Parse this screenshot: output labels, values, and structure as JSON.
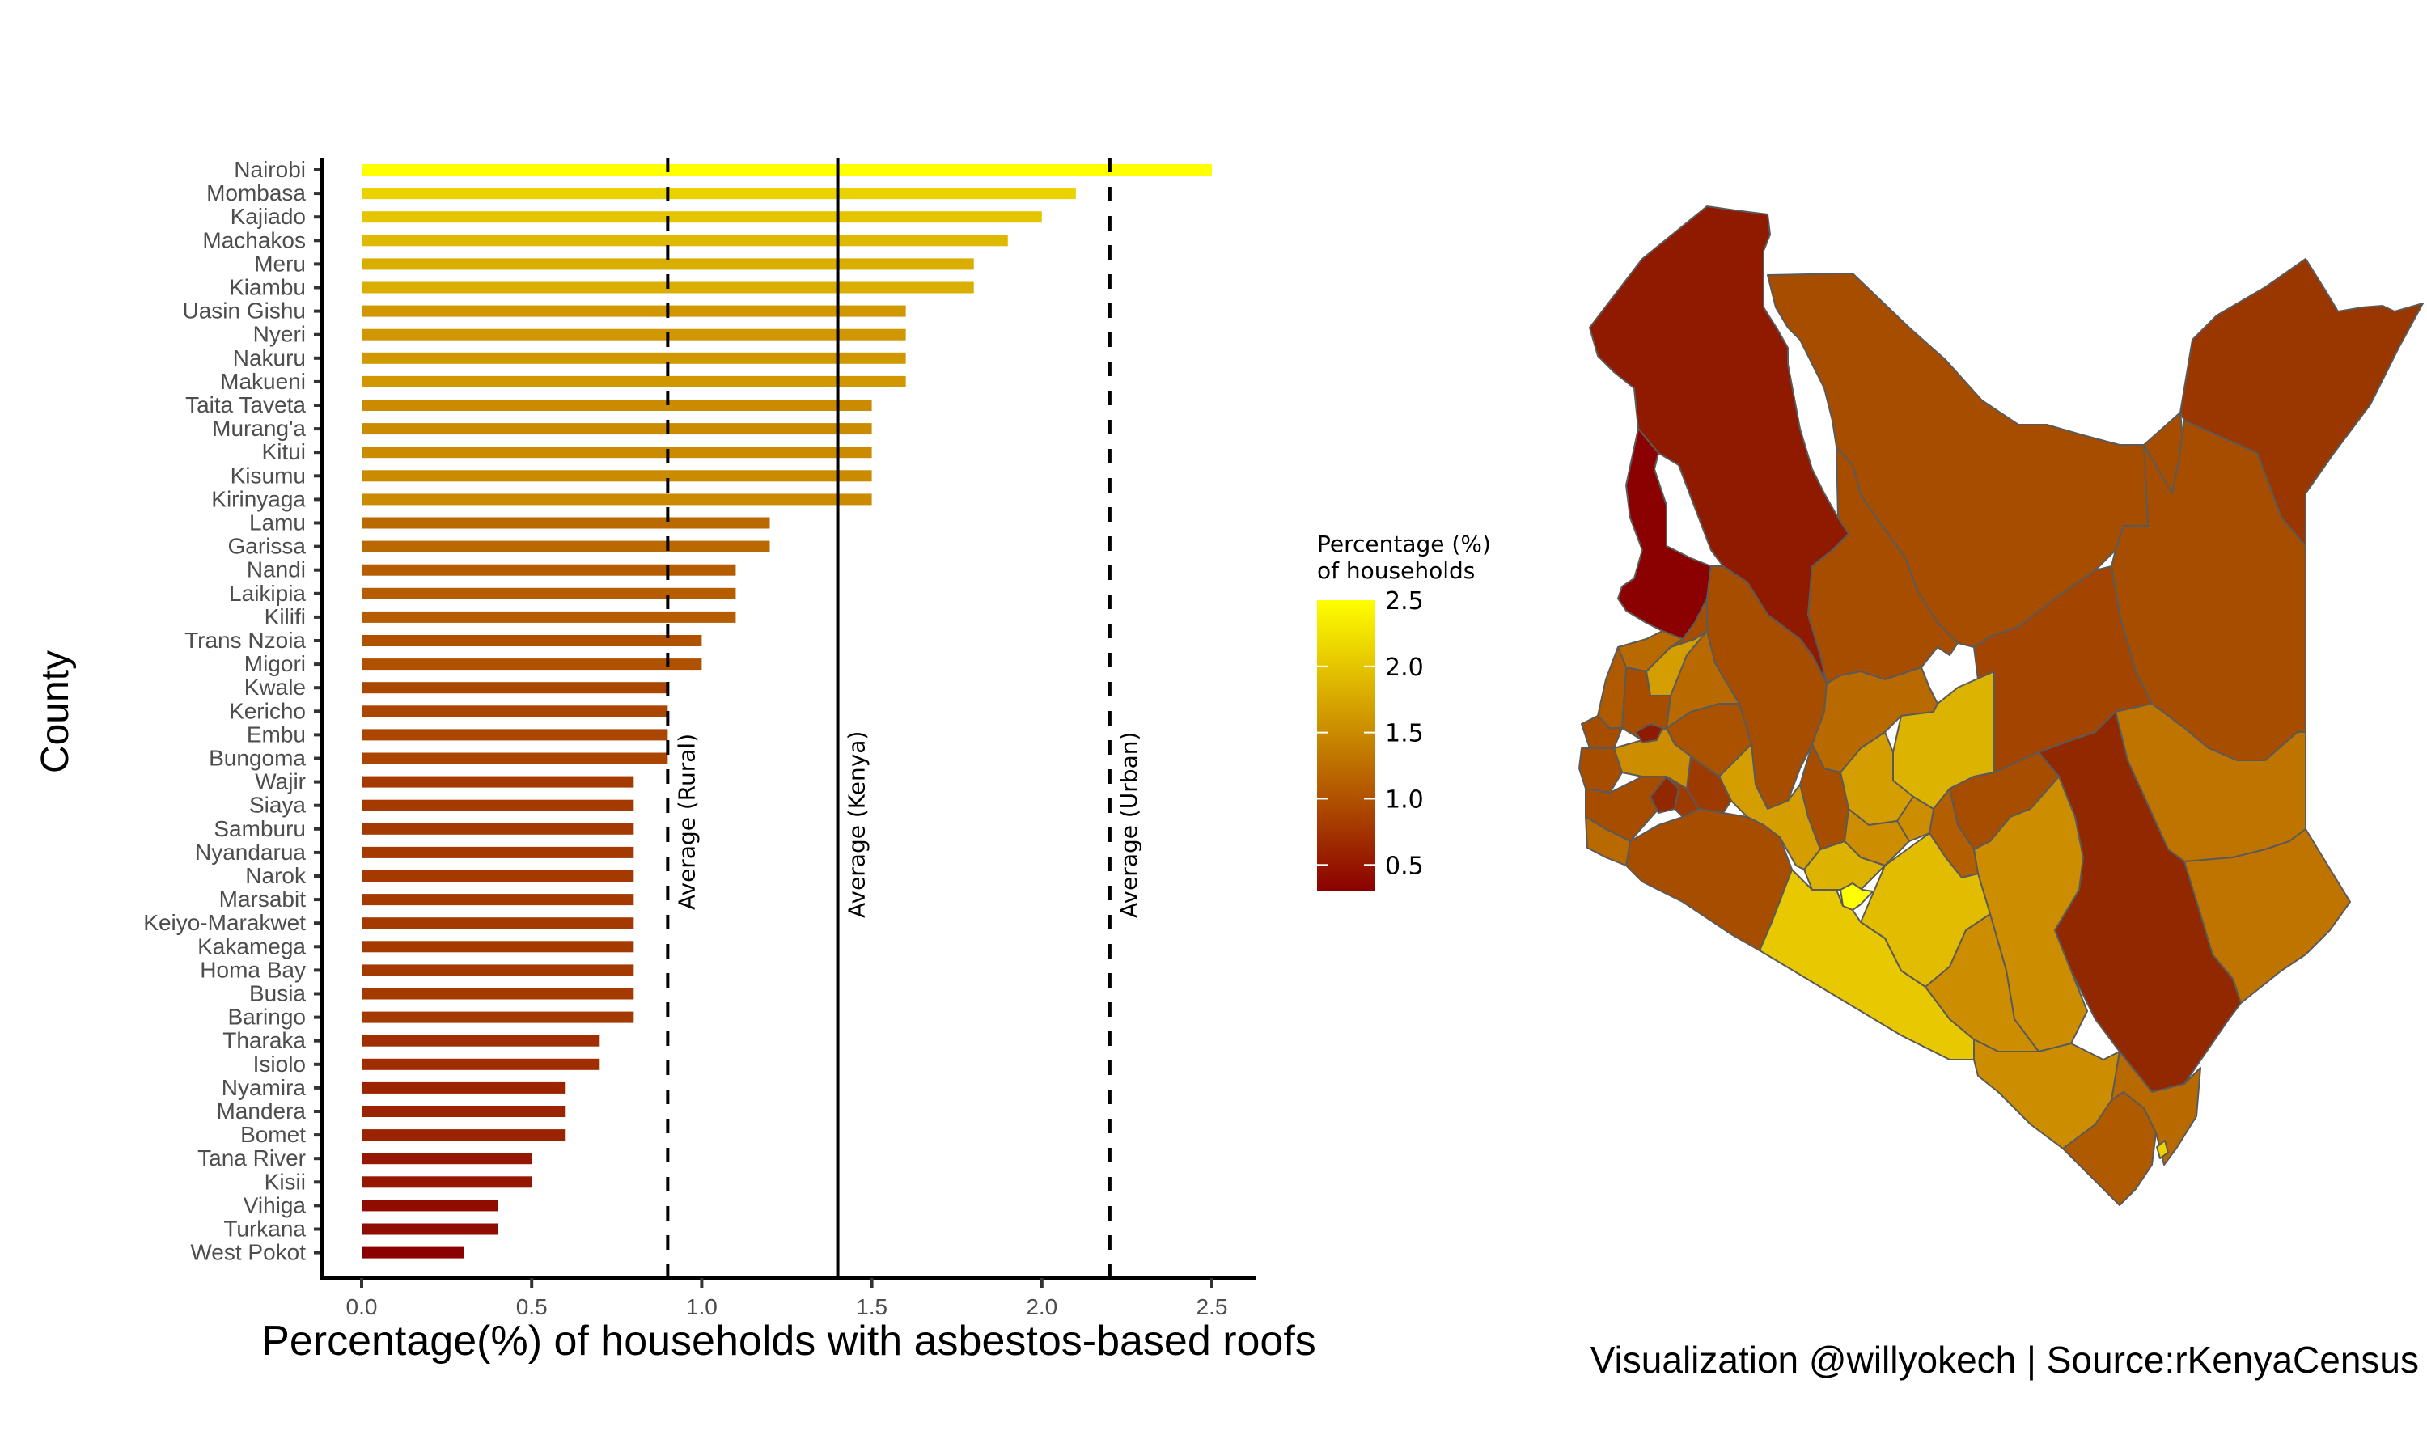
{
  "chart_data": [
    {
      "type": "bar",
      "orientation": "horizontal",
      "title": "",
      "xlabel": "Percentage(%) of households with asbestos-based roofs",
      "ylabel": "County",
      "xlim": [
        -0.12,
        2.62
      ],
      "xticks": [
        0.0,
        0.5,
        1.0,
        1.5,
        2.0,
        2.5
      ],
      "xtick_labels": [
        "0.0",
        "0.5",
        "1.0",
        "1.5",
        "2.0",
        "2.5"
      ],
      "grid": false,
      "categories": [
        "Nairobi",
        "Mombasa",
        "Kajiado",
        "Machakos",
        "Meru",
        "Kiambu",
        "Uasin Gishu",
        "Nyeri",
        "Nakuru",
        "Makueni",
        "Taita Taveta",
        "Murang'a",
        "Kitui",
        "Kisumu",
        "Kirinyaga",
        "Lamu",
        "Garissa",
        "Nandi",
        "Laikipia",
        "Kilifi",
        "Trans Nzoia",
        "Migori",
        "Kwale",
        "Kericho",
        "Embu",
        "Bungoma",
        "Wajir",
        "Siaya",
        "Samburu",
        "Nyandarua",
        "Narok",
        "Marsabit",
        "Keiyo-Marakwet",
        "Kakamega",
        "Homa Bay",
        "Busia",
        "Baringo",
        "Tharaka",
        "Isiolo",
        "Nyamira",
        "Mandera",
        "Bomet",
        "Tana River",
        "Kisii",
        "Vihiga",
        "Turkana",
        "West Pokot"
      ],
      "values": [
        2.5,
        2.1,
        2.0,
        1.9,
        1.8,
        1.8,
        1.6,
        1.6,
        1.6,
        1.6,
        1.5,
        1.5,
        1.5,
        1.5,
        1.5,
        1.2,
        1.2,
        1.1,
        1.1,
        1.1,
        1.0,
        1.0,
        0.9,
        0.9,
        0.9,
        0.9,
        0.8,
        0.8,
        0.8,
        0.8,
        0.8,
        0.8,
        0.8,
        0.8,
        0.8,
        0.8,
        0.8,
        0.7,
        0.7,
        0.6,
        0.6,
        0.6,
        0.5,
        0.5,
        0.4,
        0.4,
        0.3
      ],
      "reference_lines": [
        {
          "label": "Average (Rural)",
          "value": 0.9,
          "style": "dashed"
        },
        {
          "label": "Average (Kenya)",
          "value": 1.4,
          "style": "solid"
        },
        {
          "label": "Average (Urban)",
          "value": 2.2,
          "style": "dashed"
        }
      ],
      "color_scale": {
        "low": "#8b0000",
        "high": "#ffff00",
        "domain": [
          0.3,
          2.5
        ]
      }
    },
    {
      "type": "choropleth",
      "region": "Kenya counties",
      "value_field": "Percentage (%) of households",
      "legend": {
        "title_line1": "Percentage (%)",
        "title_line2": "of households",
        "ticks": [
          2.5,
          2.0,
          1.5,
          1.0,
          0.5
        ],
        "tick_labels": [
          "2.5",
          "2.0",
          "1.5",
          "1.0",
          "0.5"
        ],
        "placement": "left-of-map"
      }
    }
  ],
  "caption": "Visualization @willyokech | Source:rKenyaCensus",
  "colors": {
    "low": "#8b0000",
    "high": "#ffff00",
    "border": "#5a5a5a",
    "axis": "#000000"
  }
}
